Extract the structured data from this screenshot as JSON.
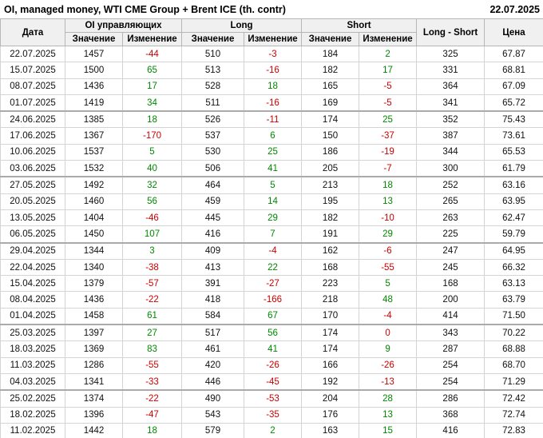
{
  "title": "OI, managed money, WTI CME Group + Brent ICE (th. contr)",
  "report_date": "22.07.2025",
  "colors": {
    "positive": "#008800",
    "negative": "#cc0000",
    "header_bg": "#f0f0f0",
    "grid_border": "#d4d4d4",
    "strong_border": "#aaaaaa"
  },
  "table": {
    "headers": {
      "date": "Дата",
      "oi_group": "OI управляющих",
      "long_group": "Long",
      "short_group": "Short",
      "value": "Значение",
      "change": "Изменение",
      "long_short": "Long - Short",
      "price": "Цена"
    },
    "rows": [
      {
        "date": "22.07.2025",
        "oi": "1457",
        "oi_chg": "-44",
        "oi_dir": "neg",
        "long": "510",
        "long_chg": "-3",
        "long_dir": "neg",
        "short": "184",
        "short_chg": "2",
        "short_dir": "pos",
        "long_short": "325",
        "price": "67.87",
        "month_start": false
      },
      {
        "date": "15.07.2025",
        "oi": "1500",
        "oi_chg": "65",
        "oi_dir": "pos",
        "long": "513",
        "long_chg": "-16",
        "long_dir": "neg",
        "short": "182",
        "short_chg": "17",
        "short_dir": "pos",
        "long_short": "331",
        "price": "68.81",
        "month_start": false
      },
      {
        "date": "08.07.2025",
        "oi": "1436",
        "oi_chg": "17",
        "oi_dir": "pos",
        "long": "528",
        "long_chg": "18",
        "long_dir": "pos",
        "short": "165",
        "short_chg": "-5",
        "short_dir": "neg",
        "long_short": "364",
        "price": "67.09",
        "month_start": false
      },
      {
        "date": "01.07.2025",
        "oi": "1419",
        "oi_chg": "34",
        "oi_dir": "pos",
        "long": "511",
        "long_chg": "-16",
        "long_dir": "neg",
        "short": "169",
        "short_chg": "-5",
        "short_dir": "neg",
        "long_short": "341",
        "price": "65.72",
        "month_start": false
      },
      {
        "date": "24.06.2025",
        "oi": "1385",
        "oi_chg": "18",
        "oi_dir": "pos",
        "long": "526",
        "long_chg": "-11",
        "long_dir": "neg",
        "short": "174",
        "short_chg": "25",
        "short_dir": "pos",
        "long_short": "352",
        "price": "75.43",
        "month_start": true
      },
      {
        "date": "17.06.2025",
        "oi": "1367",
        "oi_chg": "-170",
        "oi_dir": "neg",
        "long": "537",
        "long_chg": "6",
        "long_dir": "pos",
        "short": "150",
        "short_chg": "-37",
        "short_dir": "neg",
        "long_short": "387",
        "price": "73.61",
        "month_start": false
      },
      {
        "date": "10.06.2025",
        "oi": "1537",
        "oi_chg": "5",
        "oi_dir": "pos",
        "long": "530",
        "long_chg": "25",
        "long_dir": "pos",
        "short": "186",
        "short_chg": "-19",
        "short_dir": "neg",
        "long_short": "344",
        "price": "65.53",
        "month_start": false
      },
      {
        "date": "03.06.2025",
        "oi": "1532",
        "oi_chg": "40",
        "oi_dir": "pos",
        "long": "506",
        "long_chg": "41",
        "long_dir": "pos",
        "short": "205",
        "short_chg": "-7",
        "short_dir": "neg",
        "long_short": "300",
        "price": "61.79",
        "month_start": false
      },
      {
        "date": "27.05.2025",
        "oi": "1492",
        "oi_chg": "32",
        "oi_dir": "pos",
        "long": "464",
        "long_chg": "5",
        "long_dir": "pos",
        "short": "213",
        "short_chg": "18",
        "short_dir": "pos",
        "long_short": "252",
        "price": "63.16",
        "month_start": true
      },
      {
        "date": "20.05.2025",
        "oi": "1460",
        "oi_chg": "56",
        "oi_dir": "pos",
        "long": "459",
        "long_chg": "14",
        "long_dir": "pos",
        "short": "195",
        "short_chg": "13",
        "short_dir": "pos",
        "long_short": "265",
        "price": "63.95",
        "month_start": false
      },
      {
        "date": "13.05.2025",
        "oi": "1404",
        "oi_chg": "-46",
        "oi_dir": "neg",
        "long": "445",
        "long_chg": "29",
        "long_dir": "pos",
        "short": "182",
        "short_chg": "-10",
        "short_dir": "neg",
        "long_short": "263",
        "price": "62.47",
        "month_start": false
      },
      {
        "date": "06.05.2025",
        "oi": "1450",
        "oi_chg": "107",
        "oi_dir": "pos",
        "long": "416",
        "long_chg": "7",
        "long_dir": "pos",
        "short": "191",
        "short_chg": "29",
        "short_dir": "pos",
        "long_short": "225",
        "price": "59.79",
        "month_start": false
      },
      {
        "date": "29.04.2025",
        "oi": "1344",
        "oi_chg": "3",
        "oi_dir": "pos",
        "long": "409",
        "long_chg": "-4",
        "long_dir": "neg",
        "short": "162",
        "short_chg": "-6",
        "short_dir": "neg",
        "long_short": "247",
        "price": "64.95",
        "month_start": true
      },
      {
        "date": "22.04.2025",
        "oi": "1340",
        "oi_chg": "-38",
        "oi_dir": "neg",
        "long": "413",
        "long_chg": "22",
        "long_dir": "pos",
        "short": "168",
        "short_chg": "-55",
        "short_dir": "neg",
        "long_short": "245",
        "price": "66.32",
        "month_start": false
      },
      {
        "date": "15.04.2025",
        "oi": "1379",
        "oi_chg": "-57",
        "oi_dir": "neg",
        "long": "391",
        "long_chg": "-27",
        "long_dir": "neg",
        "short": "223",
        "short_chg": "5",
        "short_dir": "pos",
        "long_short": "168",
        "price": "63.13",
        "month_start": false
      },
      {
        "date": "08.04.2025",
        "oi": "1436",
        "oi_chg": "-22",
        "oi_dir": "neg",
        "long": "418",
        "long_chg": "-166",
        "long_dir": "neg",
        "short": "218",
        "short_chg": "48",
        "short_dir": "pos",
        "long_short": "200",
        "price": "63.79",
        "month_start": false
      },
      {
        "date": "01.04.2025",
        "oi": "1458",
        "oi_chg": "61",
        "oi_dir": "pos",
        "long": "584",
        "long_chg": "67",
        "long_dir": "pos",
        "short": "170",
        "short_chg": "-4",
        "short_dir": "neg",
        "long_short": "414",
        "price": "71.50",
        "month_start": false
      },
      {
        "date": "25.03.2025",
        "oi": "1397",
        "oi_chg": "27",
        "oi_dir": "pos",
        "long": "517",
        "long_chg": "56",
        "long_dir": "pos",
        "short": "174",
        "short_chg": "0",
        "short_dir": "neg",
        "long_short": "343",
        "price": "70.22",
        "month_start": true
      },
      {
        "date": "18.03.2025",
        "oi": "1369",
        "oi_chg": "83",
        "oi_dir": "pos",
        "long": "461",
        "long_chg": "41",
        "long_dir": "pos",
        "short": "174",
        "short_chg": "9",
        "short_dir": "pos",
        "long_short": "287",
        "price": "68.88",
        "month_start": false
      },
      {
        "date": "11.03.2025",
        "oi": "1286",
        "oi_chg": "-55",
        "oi_dir": "neg",
        "long": "420",
        "long_chg": "-26",
        "long_dir": "neg",
        "short": "166",
        "short_chg": "-26",
        "short_dir": "neg",
        "long_short": "254",
        "price": "68.70",
        "month_start": false
      },
      {
        "date": "04.03.2025",
        "oi": "1341",
        "oi_chg": "-33",
        "oi_dir": "neg",
        "long": "446",
        "long_chg": "-45",
        "long_dir": "neg",
        "short": "192",
        "short_chg": "-13",
        "short_dir": "neg",
        "long_short": "254",
        "price": "71.29",
        "month_start": false
      },
      {
        "date": "25.02.2025",
        "oi": "1374",
        "oi_chg": "-22",
        "oi_dir": "neg",
        "long": "490",
        "long_chg": "-53",
        "long_dir": "neg",
        "short": "204",
        "short_chg": "28",
        "short_dir": "pos",
        "long_short": "286",
        "price": "72.42",
        "month_start": true
      },
      {
        "date": "18.02.2025",
        "oi": "1396",
        "oi_chg": "-47",
        "oi_dir": "neg",
        "long": "543",
        "long_chg": "-35",
        "long_dir": "neg",
        "short": "176",
        "short_chg": "13",
        "short_dir": "pos",
        "long_short": "368",
        "price": "72.74",
        "month_start": false
      },
      {
        "date": "11.02.2025",
        "oi": "1442",
        "oi_chg": "18",
        "oi_dir": "pos",
        "long": "579",
        "long_chg": "2",
        "long_dir": "pos",
        "short": "163",
        "short_chg": "15",
        "short_dir": "pos",
        "long_short": "416",
        "price": "72.83",
        "month_start": false
      }
    ]
  }
}
